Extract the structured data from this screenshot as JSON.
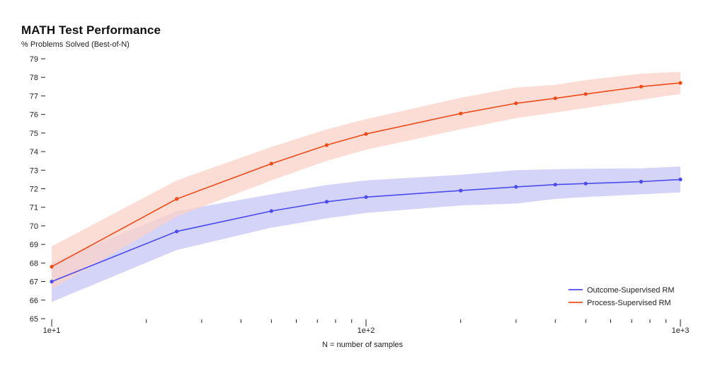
{
  "chart_data": {
    "type": "line",
    "title": "MATH Test Performance",
    "ylabel": "% Problems Solved (Best-of-N)",
    "xlabel": "N = number of samples",
    "x_scale": "log",
    "xlim": [
      10,
      1000
    ],
    "ylim": [
      65,
      79
    ],
    "y_ticks": [
      65,
      66,
      67,
      68,
      69,
      70,
      71,
      72,
      73,
      74,
      75,
      76,
      77,
      78,
      79
    ],
    "x_tick_labels": [
      {
        "value": 10,
        "label": "1e+1"
      },
      {
        "value": 100,
        "label": "1e+2"
      },
      {
        "value": 1000,
        "label": "1e+3"
      }
    ],
    "x_minor_ticks": [
      20,
      30,
      40,
      50,
      60,
      70,
      80,
      90,
      200,
      300,
      400,
      500,
      600,
      700,
      800,
      900
    ],
    "legend_position": "bottom-right",
    "series": [
      {
        "name": "Outcome-Supervised RM",
        "color": "#4b4bef",
        "band_color": "#c5c5f7",
        "x": [
          10,
          25,
          50,
          75,
          100,
          200,
          300,
          400,
          500,
          750,
          1000
        ],
        "y": [
          67.0,
          69.7,
          70.8,
          71.3,
          71.55,
          71.9,
          72.1,
          72.22,
          72.28,
          72.38,
          72.5
        ],
        "y_upper": [
          68.0,
          70.8,
          71.7,
          72.2,
          72.45,
          72.75,
          73.0,
          73.05,
          73.08,
          73.1,
          73.2
        ],
        "y_lower": [
          65.9,
          68.7,
          69.9,
          70.4,
          70.7,
          71.1,
          71.2,
          71.45,
          71.55,
          71.7,
          71.8
        ]
      },
      {
        "name": "Process-Supervised RM",
        "color": "#ef4b19",
        "band_color": "#fbd2c8",
        "x": [
          10,
          25,
          50,
          75,
          100,
          200,
          300,
          400,
          500,
          750,
          1000
        ],
        "y": [
          67.8,
          71.45,
          73.35,
          74.35,
          74.95,
          76.05,
          76.6,
          76.87,
          77.1,
          77.5,
          77.7
        ],
        "y_upper": [
          68.9,
          72.45,
          74.25,
          75.2,
          75.75,
          76.9,
          77.45,
          77.6,
          77.85,
          78.2,
          78.3
        ],
        "y_lower": [
          66.6,
          70.5,
          72.45,
          73.5,
          74.1,
          75.2,
          75.8,
          76.1,
          76.35,
          76.8,
          77.1
        ]
      }
    ]
  }
}
